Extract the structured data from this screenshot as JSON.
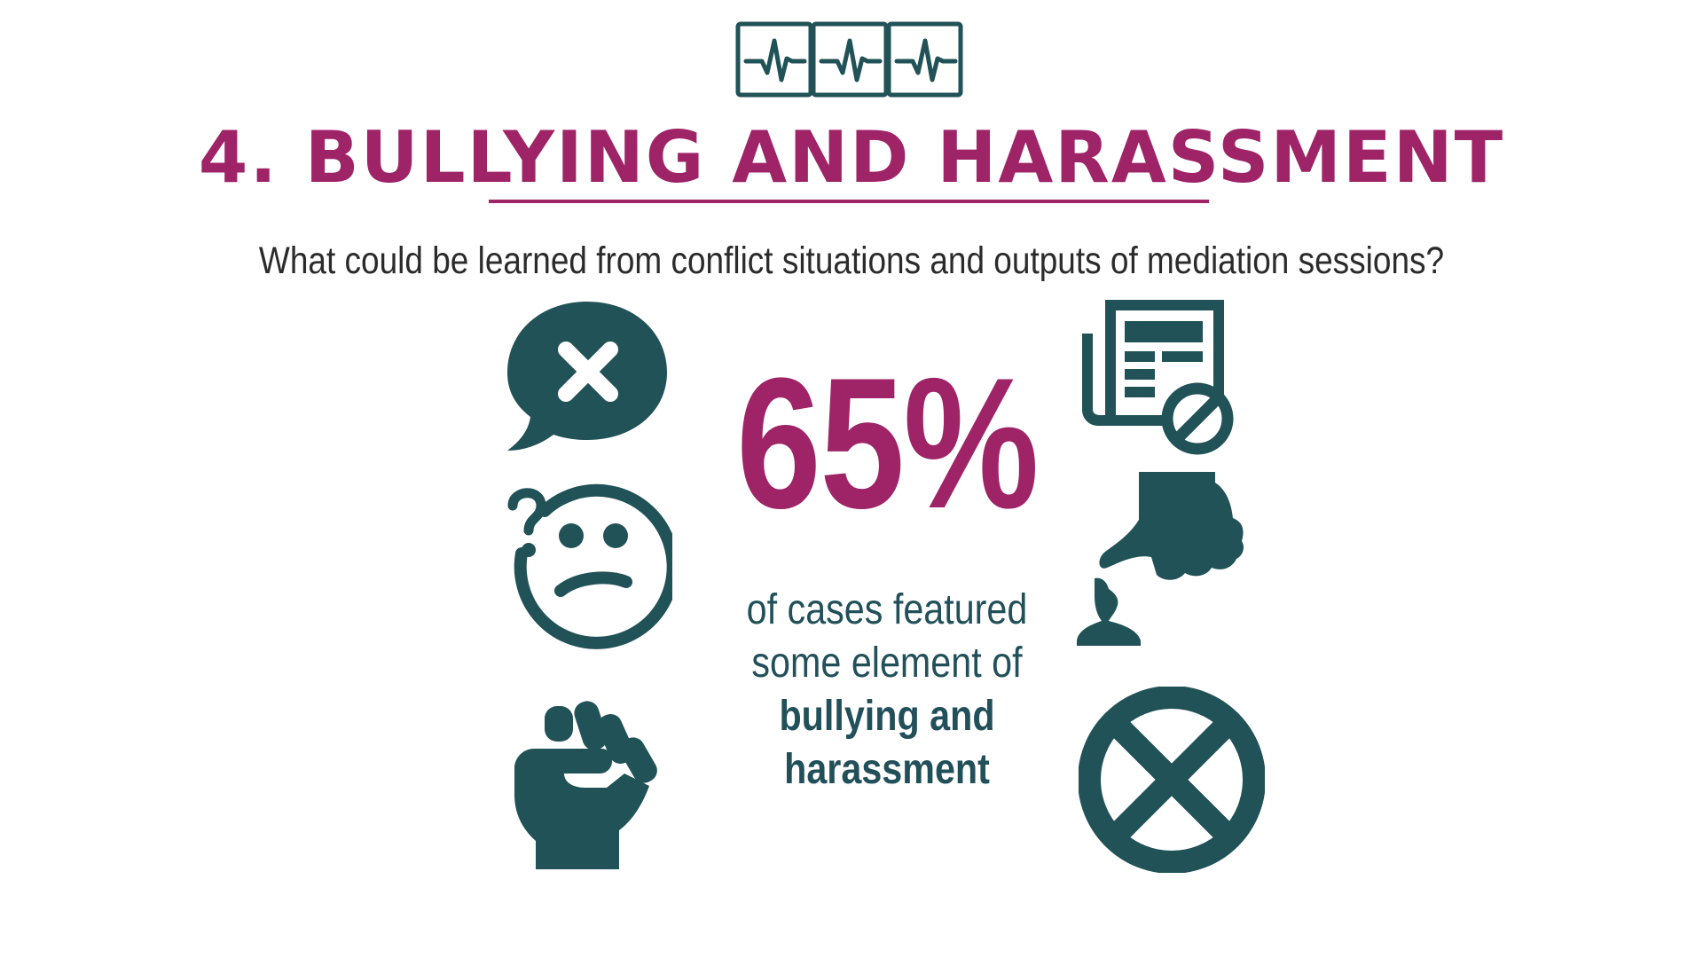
{
  "slide": {
    "title": "4. BULLYING AND HARASSMENT",
    "subtitle": "What could be learned from conflict situations and outputs of mediation sessions?"
  },
  "stat": {
    "value": "65%",
    "caption_line1": "of cases featured",
    "caption_line2": "some element of",
    "caption_bold_line1": "bullying and",
    "caption_bold_line2": "harassment"
  },
  "icons": {
    "logo": "heartbeat-monitor-icon",
    "left": [
      "speech-bubble-x-icon",
      "confused-face-icon",
      "fist-icon"
    ],
    "right": [
      "newspaper-blocked-icon",
      "pointing-finger-person-icon",
      "circle-x-icon"
    ]
  },
  "colors": {
    "accent": "#9e2467",
    "icon": "#215257",
    "text": "#2b2b2b",
    "caption": "#22505a"
  }
}
